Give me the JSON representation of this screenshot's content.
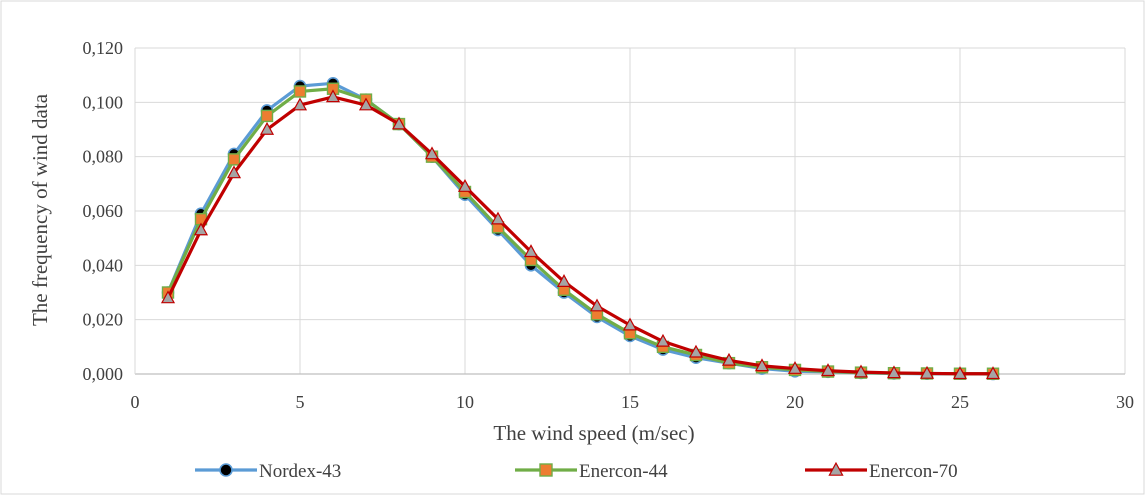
{
  "chart_data": {
    "type": "line",
    "xlabel": "The wind speed (m/sec)",
    "ylabel": "The frequency of wind data",
    "xlim": [
      0,
      30
    ],
    "ylim": [
      0,
      0.12
    ],
    "x_ticks": [
      0,
      5,
      10,
      15,
      20,
      25,
      30
    ],
    "x_tick_labels": [
      "0",
      "5",
      "10",
      "15",
      "20",
      "25",
      "30"
    ],
    "y_ticks": [
      0,
      0.02,
      0.04,
      0.06,
      0.08,
      0.1,
      0.12
    ],
    "y_tick_labels": [
      "0,000",
      "0,020",
      "0,040",
      "0,060",
      "0,080",
      "0,100",
      "0,120"
    ],
    "grid": true,
    "legend_position": "bottom",
    "x": [
      1,
      2,
      3,
      4,
      5,
      6,
      7,
      8,
      9,
      10,
      11,
      12,
      13,
      14,
      15,
      16,
      17,
      18,
      19,
      20,
      21,
      22,
      23,
      24,
      25,
      26
    ],
    "series": [
      {
        "name": "Nordex-43",
        "line_color": "#5b9bd5",
        "marker": "circle",
        "marker_color": "#000000",
        "values": [
          0.03,
          0.059,
          0.081,
          0.097,
          0.106,
          0.107,
          0.101,
          0.092,
          0.08,
          0.066,
          0.053,
          0.04,
          0.03,
          0.021,
          0.014,
          0.009,
          0.006,
          0.004,
          0.002,
          0.001,
          0.0008,
          0.0004,
          0.0002,
          0.0001,
          0.0001,
          0.0
        ]
      },
      {
        "name": "Enercon-44",
        "line_color": "#70ad47",
        "marker": "square",
        "marker_color": "#ed7d31",
        "values": [
          0.03,
          0.057,
          0.079,
          0.095,
          0.104,
          0.105,
          0.101,
          0.092,
          0.08,
          0.067,
          0.054,
          0.042,
          0.031,
          0.022,
          0.015,
          0.01,
          0.007,
          0.004,
          0.0025,
          0.0015,
          0.0009,
          0.0005,
          0.0003,
          0.0002,
          0.0001,
          0.0001
        ]
      },
      {
        "name": "Enercon-70",
        "line_color": "#c00000",
        "marker": "triangle",
        "marker_color": "#a5a5a5",
        "values": [
          0.028,
          0.053,
          0.074,
          0.09,
          0.099,
          0.102,
          0.099,
          0.092,
          0.081,
          0.069,
          0.057,
          0.045,
          0.034,
          0.025,
          0.018,
          0.012,
          0.008,
          0.005,
          0.003,
          0.002,
          0.0012,
          0.0007,
          0.0004,
          0.0002,
          0.0001,
          0.0001
        ]
      }
    ]
  }
}
